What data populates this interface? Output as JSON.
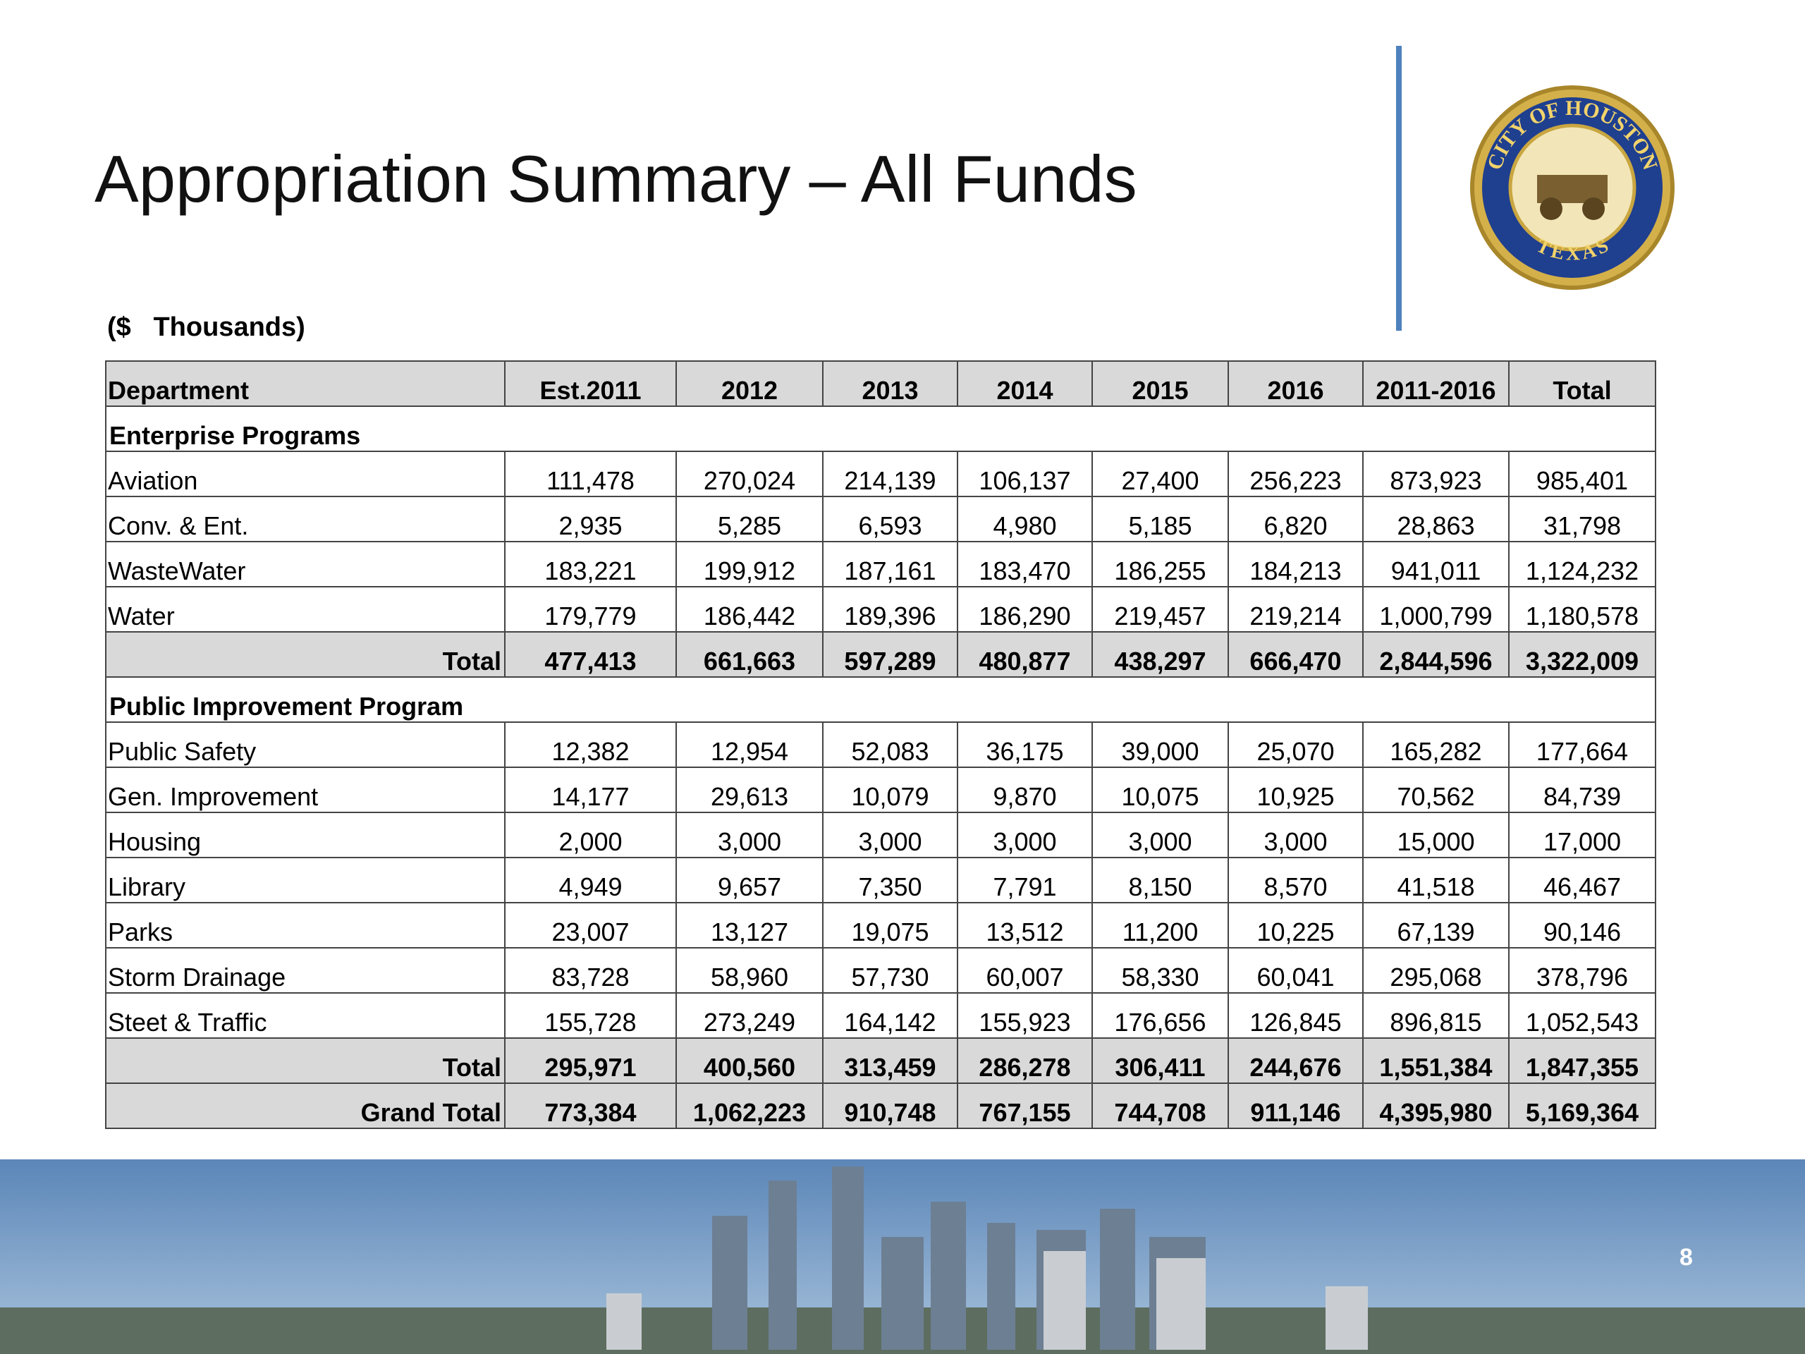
{
  "header": {
    "title": "Appropriation Summary – All Funds",
    "subtitle": "($   Thousands)",
    "seal": {
      "top": "CITY OF HOUSTON",
      "bottom": "TEXAS"
    }
  },
  "table": {
    "columns": [
      "Department",
      "Est.2011",
      "2012",
      "2013",
      "2014",
      "2015",
      "2016",
      "2011-2016",
      "Total"
    ],
    "sections": [
      {
        "title": "Enterprise Programs",
        "rows": [
          {
            "label": "Aviation",
            "values": [
              "111,478",
              "270,024",
              "214,139",
              "106,137",
              "27,400",
              "256,223",
              "873,923",
              "985,401"
            ]
          },
          {
            "label": "Conv. & Ent.",
            "values": [
              "2,935",
              "5,285",
              "6,593",
              "4,980",
              "5,185",
              "6,820",
              "28,863",
              "31,798"
            ]
          },
          {
            "label": "WasteWater",
            "values": [
              "183,221",
              "199,912",
              "187,161",
              "183,470",
              "186,255",
              "184,213",
              "941,011",
              "1,124,232"
            ]
          },
          {
            "label": "Water",
            "values": [
              "179,779",
              "186,442",
              "189,396",
              "186,290",
              "219,457",
              "219,214",
              "1,000,799",
              "1,180,578"
            ]
          }
        ],
        "total": {
          "label": "Total",
          "values": [
            "477,413",
            "661,663",
            "597,289",
            "480,877",
            "438,297",
            "666,470",
            "2,844,596",
            "3,322,009"
          ]
        }
      },
      {
        "title": "Public Improvement Program",
        "rows": [
          {
            "label": "Public Safety",
            "values": [
              "12,382",
              "12,954",
              "52,083",
              "36,175",
              "39,000",
              "25,070",
              "165,282",
              "177,664"
            ]
          },
          {
            "label": "Gen. Improvement",
            "values": [
              "14,177",
              "29,613",
              "10,079",
              "9,870",
              "10,075",
              "10,925",
              "70,562",
              "84,739"
            ]
          },
          {
            "label": "Housing",
            "values": [
              "2,000",
              "3,000",
              "3,000",
              "3,000",
              "3,000",
              "3,000",
              "15,000",
              "17,000"
            ]
          },
          {
            "label": "Library",
            "values": [
              "4,949",
              "9,657",
              "7,350",
              "7,791",
              "8,150",
              "8,570",
              "41,518",
              "46,467"
            ]
          },
          {
            "label": "Parks",
            "values": [
              "23,007",
              "13,127",
              "19,075",
              "13,512",
              "11,200",
              "10,225",
              "67,139",
              "90,146"
            ]
          },
          {
            "label": "Storm Drainage",
            "values": [
              "83,728",
              "58,960",
              "57,730",
              "60,007",
              "58,330",
              "60,041",
              "295,068",
              "378,796"
            ]
          },
          {
            "label": "Steet & Traffic",
            "values": [
              "155,728",
              "273,249",
              "164,142",
              "155,923",
              "176,656",
              "126,845",
              "896,815",
              "1,052,543"
            ]
          }
        ],
        "total": {
          "label": "Total",
          "values": [
            "295,971",
            "400,560",
            "313,459",
            "286,278",
            "306,411",
            "244,676",
            "1,551,384",
            "1,847,355"
          ]
        }
      }
    ],
    "grand_total": {
      "label": "Grand Total",
      "values": [
        "773,384",
        "1,062,223",
        "910,748",
        "767,155",
        "744,708",
        "911,146",
        "4,395,980",
        "5,169,364"
      ]
    }
  },
  "footer": {
    "page_number": "8"
  }
}
